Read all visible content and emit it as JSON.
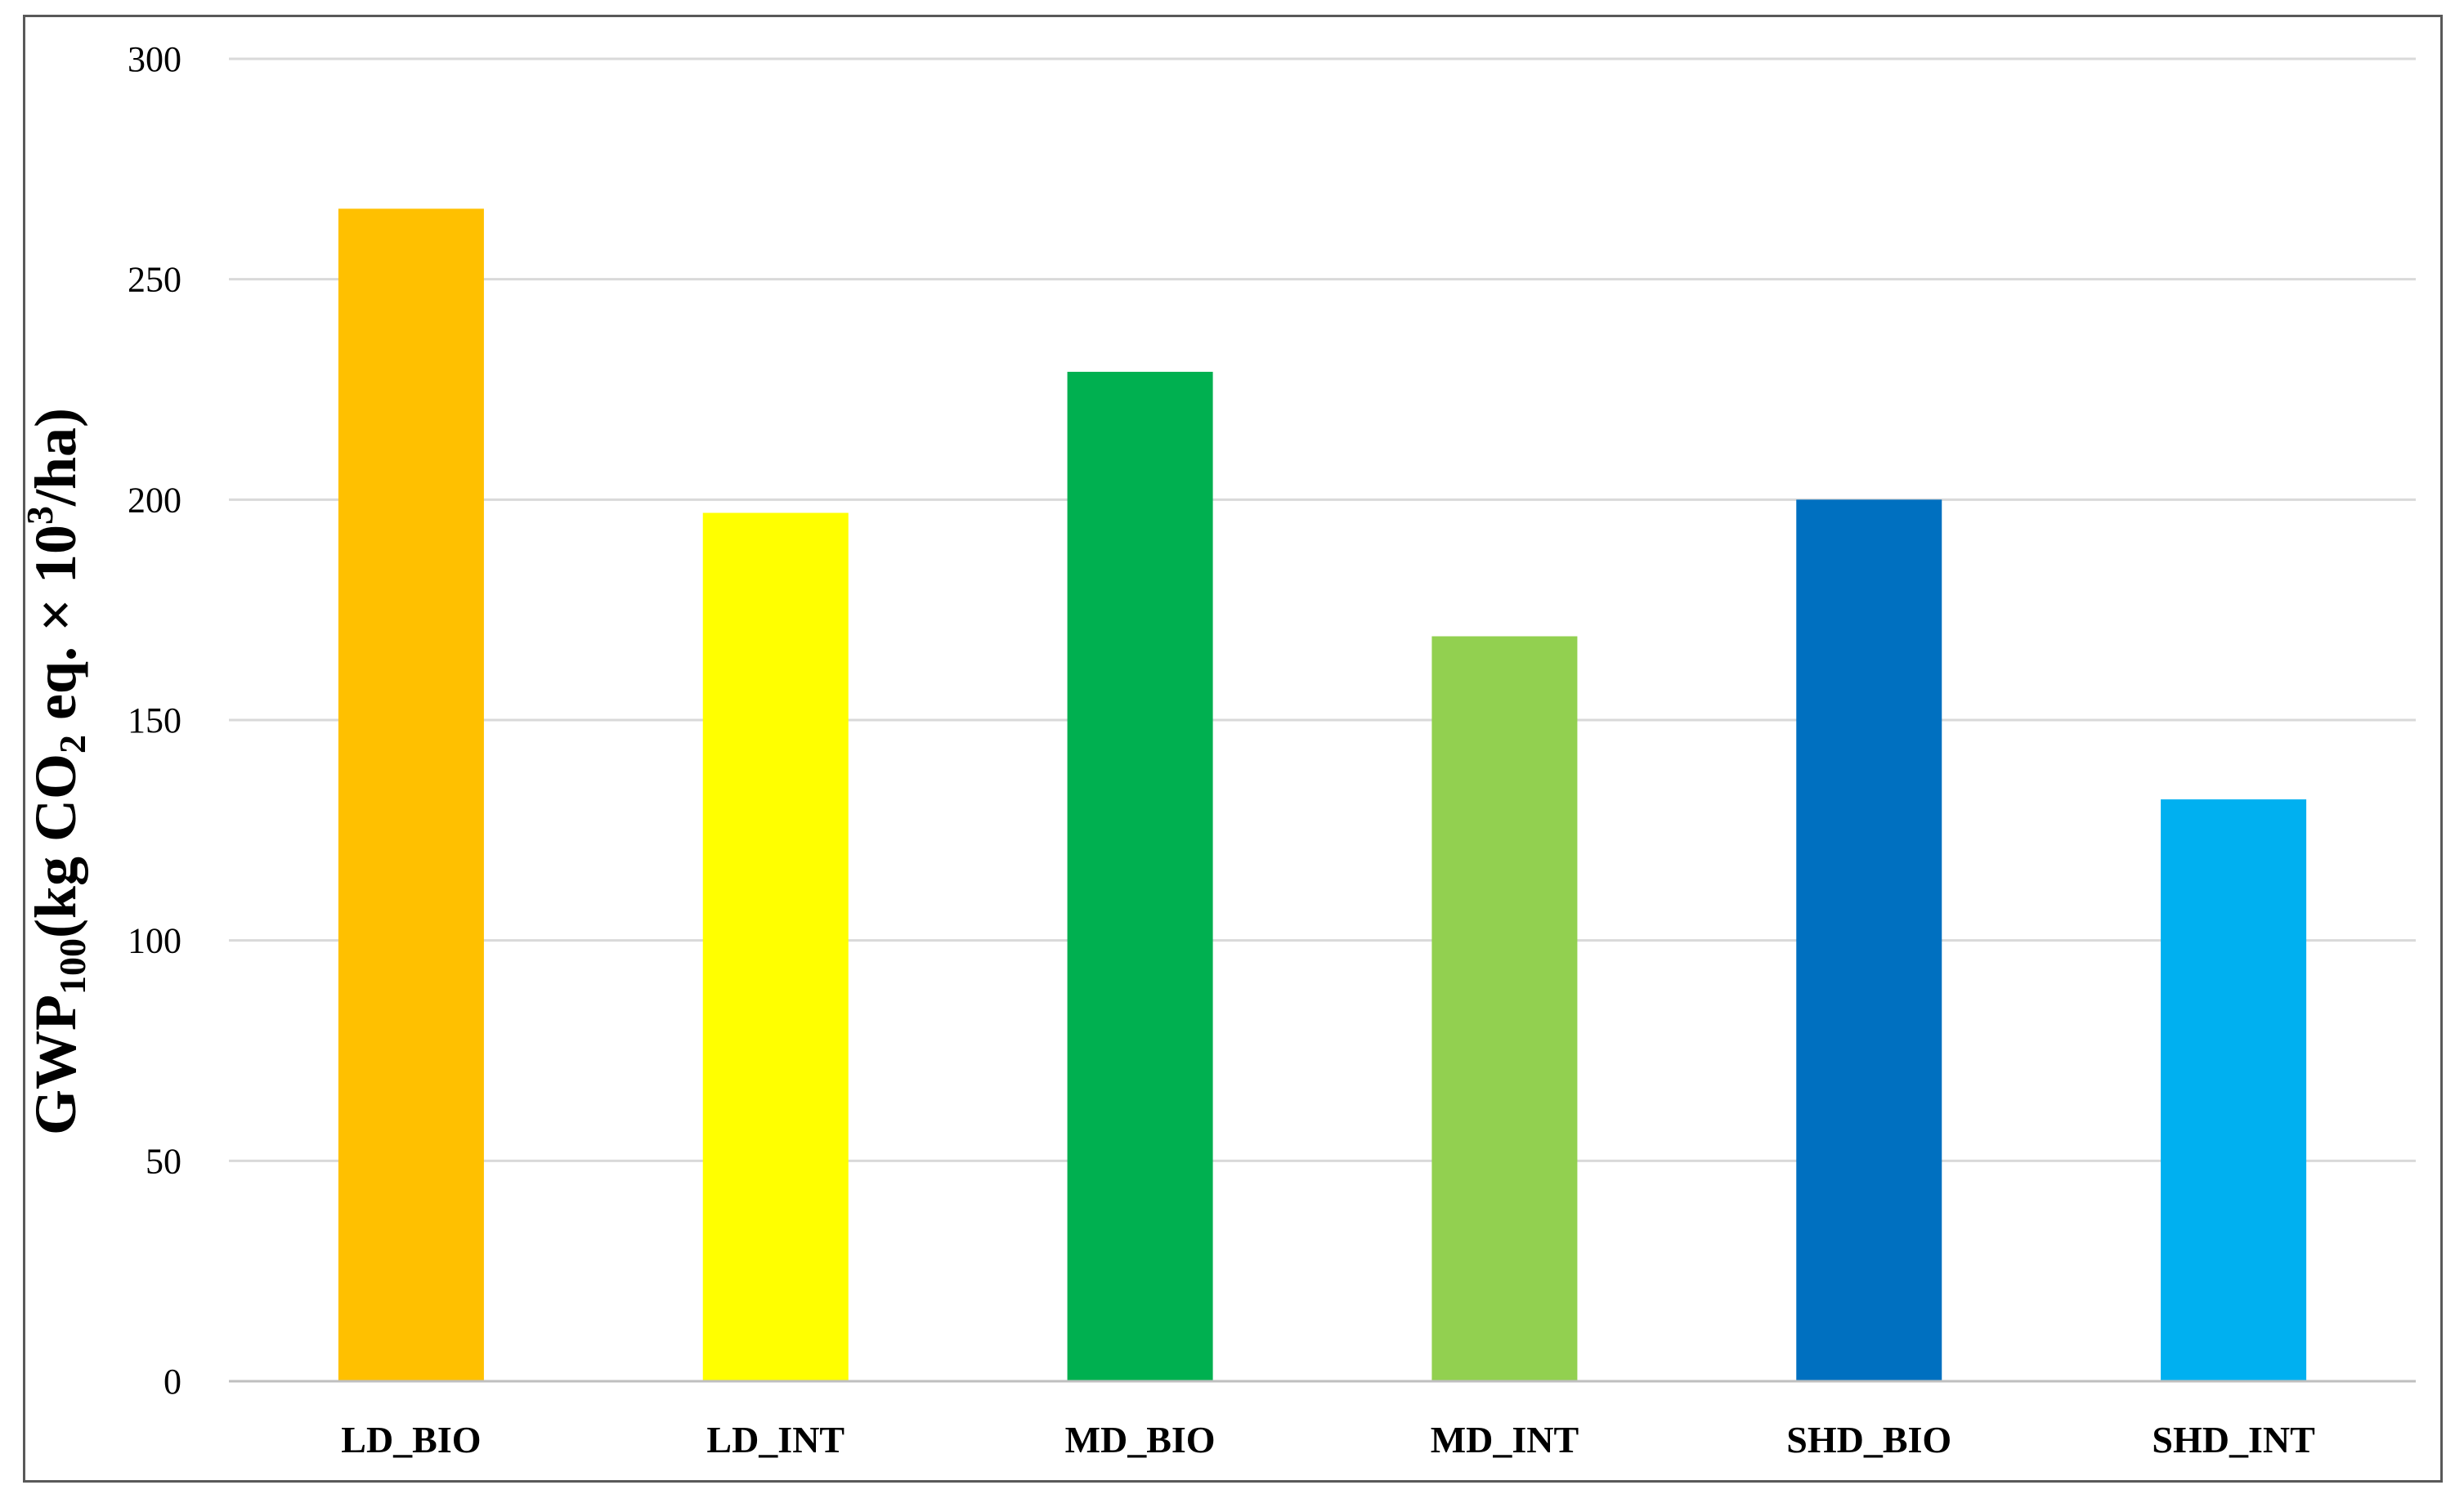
{
  "chart_data": {
    "type": "bar",
    "categories": [
      "LD_BIO",
      "LD_INT",
      "MD_BIO",
      "MD_INT",
      "SHD_BIO",
      "SHD_INT"
    ],
    "values": [
      266,
      197,
      229,
      169,
      200,
      132
    ],
    "colors": [
      "#FFC000",
      "#FFFF00",
      "#00B050",
      "#92D050",
      "#0070C0",
      "#00B0F0"
    ],
    "ylim": [
      0,
      300
    ],
    "yticks": [
      "0",
      "50",
      "100",
      "150",
      "200",
      "250",
      "300"
    ],
    "ylabel": {
      "p1": "GWP",
      "p1_sub": "100",
      "p2": "(kg CO",
      "p2_sub": "2",
      "p3": " eq. × 10",
      "p3_sup": "3",
      "p4": "/ha)"
    },
    "grid": true,
    "legend": "none"
  }
}
